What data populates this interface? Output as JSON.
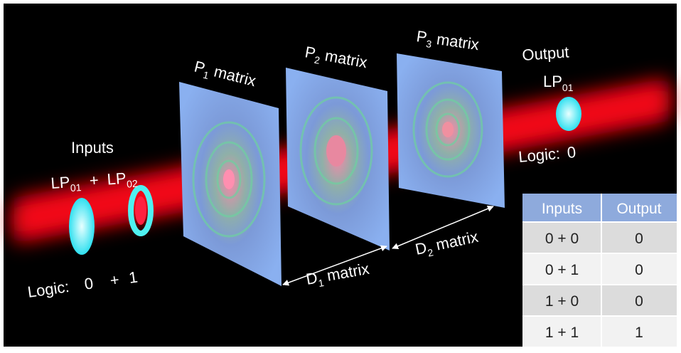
{
  "inputs": {
    "title": "Inputs",
    "modes": [
      {
        "base": "LP",
        "sub": "01"
      },
      {
        "base": "LP",
        "sub": "02"
      }
    ],
    "plus": "+",
    "logic_label": "Logic:",
    "logic_values": [
      "0",
      "1"
    ],
    "logic_plus": "+"
  },
  "planes": [
    {
      "base": "P",
      "sub": "1",
      "suffix": " matrix"
    },
    {
      "base": "P",
      "sub": "2",
      "suffix": " matrix"
    },
    {
      "base": "P",
      "sub": "3",
      "suffix": " matrix"
    }
  ],
  "distances": [
    {
      "base": "D",
      "sub": "1",
      "suffix": " matrix"
    },
    {
      "base": "D",
      "sub": "2",
      "suffix": " matrix"
    }
  ],
  "output": {
    "title": "Output",
    "mode": {
      "base": "LP",
      "sub": "01"
    },
    "logic_label": "Logic:",
    "logic_value": "0"
  },
  "table": {
    "header": [
      "Inputs",
      "Output"
    ],
    "rows": [
      [
        "0 + 0",
        "0"
      ],
      [
        "0 + 1",
        "0"
      ],
      [
        "1 + 0",
        "0"
      ],
      [
        "1 + 1",
        "1"
      ]
    ]
  }
}
